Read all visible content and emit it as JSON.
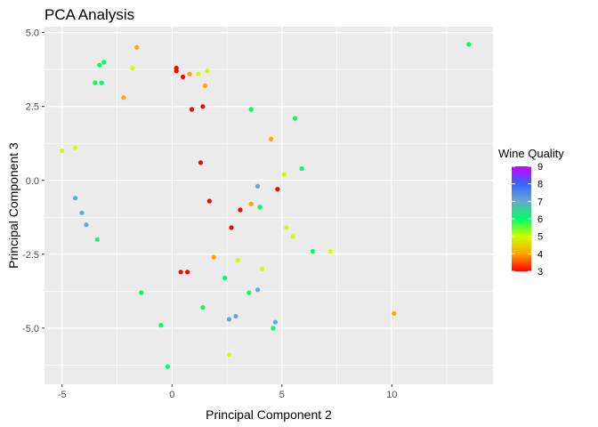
{
  "chart_data": {
    "type": "scatter",
    "title": "PCA Analysis",
    "xlabel": "Principal Component 2",
    "ylabel": "Principal Component 3",
    "xlim": [
      -5.8,
      14.6
    ],
    "ylim": [
      -6.9,
      5.2
    ],
    "x_ticks": [
      -5,
      0,
      5,
      10
    ],
    "y_ticks": [
      -5.0,
      -2.5,
      0.0,
      2.5,
      5.0
    ],
    "x_tick_labels": [
      "-5",
      "0",
      "5",
      "10"
    ],
    "y_tick_labels": [
      "-5.0",
      "-2.5",
      "0.0",
      "2.5",
      "5.0"
    ],
    "grid": true,
    "panel_background": "#ebebeb",
    "legend": {
      "title": "Wine Quality",
      "placement": "right",
      "min": 3,
      "max": 9,
      "labels": [
        "9",
        "8",
        "7",
        "6",
        "5",
        "4",
        "3"
      ],
      "label_values": [
        9,
        8,
        7,
        6,
        5,
        4,
        3
      ],
      "gradient_stops": [
        {
          "value": 3,
          "color": "#ff0000"
        },
        {
          "value": 4,
          "color": "#ffa500"
        },
        {
          "value": 5,
          "color": "#ccff00"
        },
        {
          "value": 6,
          "color": "#00ff66"
        },
        {
          "value": 7,
          "color": "#66aacc"
        },
        {
          "value": 8,
          "color": "#3366ff"
        },
        {
          "value": 9,
          "color": "#cc00ff"
        }
      ]
    },
    "points": [
      {
        "x": 13.5,
        "y": 4.6,
        "q": 6
      },
      {
        "x": -1.6,
        "y": 4.5,
        "q": 4
      },
      {
        "x": 10.1,
        "y": -4.5,
        "q": 4
      },
      {
        "x": -0.2,
        "y": -6.3,
        "q": 6
      },
      {
        "x": -0.5,
        "y": -4.9,
        "q": 6
      },
      {
        "x": 2.6,
        "y": -5.9,
        "q": 5
      },
      {
        "x": 4.7,
        "y": -4.8,
        "q": 7
      },
      {
        "x": 4.6,
        "y": -5.0,
        "q": 6
      },
      {
        "x": 7.2,
        "y": -2.4,
        "q": 5
      },
      {
        "x": 6.4,
        "y": -2.4,
        "q": 6
      },
      {
        "x": 5.9,
        "y": 0.4,
        "q": 6
      },
      {
        "x": 5.6,
        "y": 2.1,
        "q": 6
      },
      {
        "x": 4.5,
        "y": 1.4,
        "q": 4
      },
      {
        "x": 5.5,
        "y": -1.9,
        "q": 5
      },
      {
        "x": 5.2,
        "y": -1.6,
        "q": 5
      },
      {
        "x": 4.8,
        "y": -0.3,
        "q": 3
      },
      {
        "x": 5.1,
        "y": 0.2,
        "q": 5
      },
      {
        "x": 3.6,
        "y": -0.8,
        "q": 4
      },
      {
        "x": 4.0,
        "y": -0.9,
        "q": 6
      },
      {
        "x": 4.1,
        "y": -3.0,
        "q": 5
      },
      {
        "x": 3.9,
        "y": -3.7,
        "q": 7
      },
      {
        "x": 3.5,
        "y": -3.8,
        "q": 6
      },
      {
        "x": 2.6,
        "y": -4.7,
        "q": 7
      },
      {
        "x": 2.9,
        "y": -4.6,
        "q": 7
      },
      {
        "x": 1.4,
        "y": -4.3,
        "q": 6
      },
      {
        "x": -1.4,
        "y": -3.8,
        "q": 6
      },
      {
        "x": 0.7,
        "y": -3.1,
        "q": 3
      },
      {
        "x": 0.4,
        "y": -3.1,
        "q": 3
      },
      {
        "x": 0.2,
        "y": 3.8,
        "q": 3
      },
      {
        "x": 0.2,
        "y": 3.7,
        "q": 3
      },
      {
        "x": 0.5,
        "y": 3.5,
        "q": 3
      },
      {
        "x": 1.2,
        "y": 3.6,
        "q": 5
      },
      {
        "x": 1.6,
        "y": 3.7,
        "q": 5
      },
      {
        "x": -3.1,
        "y": 4.0,
        "q": 6
      },
      {
        "x": -3.3,
        "y": 3.9,
        "q": 6
      },
      {
        "x": -1.8,
        "y": 3.8,
        "q": 5
      },
      {
        "x": -3.2,
        "y": 3.3,
        "q": 6
      },
      {
        "x": -3.5,
        "y": 3.3,
        "q": 6
      },
      {
        "x": -4.4,
        "y": 1.1,
        "q": 5
      },
      {
        "x": -5.0,
        "y": 1.0,
        "q": 5
      },
      {
        "x": -4.4,
        "y": -0.6,
        "q": 7
      },
      {
        "x": -4.1,
        "y": -1.1,
        "q": 7
      },
      {
        "x": -3.9,
        "y": -1.5,
        "q": 7
      },
      {
        "x": -3.4,
        "y": -2.0,
        "q": 6
      },
      {
        "x": 0.9,
        "y": 2.4,
        "q": 3
      },
      {
        "x": 1.4,
        "y": 2.5,
        "q": 3
      },
      {
        "x": 1.3,
        "y": 0.6,
        "q": 3
      },
      {
        "x": 2.7,
        "y": -1.6,
        "q": 3
      },
      {
        "x": 3.1,
        "y": -1.0,
        "q": 3
      },
      {
        "x": 1.7,
        "y": -0.7,
        "q": 3
      },
      {
        "x": 1.5,
        "y": 3.2,
        "q": 4
      },
      {
        "x": 0.8,
        "y": 3.6,
        "q": 4
      },
      {
        "x": -2.2,
        "y": 2.8,
        "q": 4
      },
      {
        "x": 1.9,
        "y": -2.6,
        "q": 4
      },
      {
        "x": 3.6,
        "y": 2.4,
        "q": 6
      },
      {
        "x": 2.4,
        "y": -3.3,
        "q": 6
      },
      {
        "x": 3.0,
        "y": -2.7,
        "q": 5
      },
      {
        "x": 3.9,
        "y": -0.2,
        "q": 7
      }
    ]
  }
}
